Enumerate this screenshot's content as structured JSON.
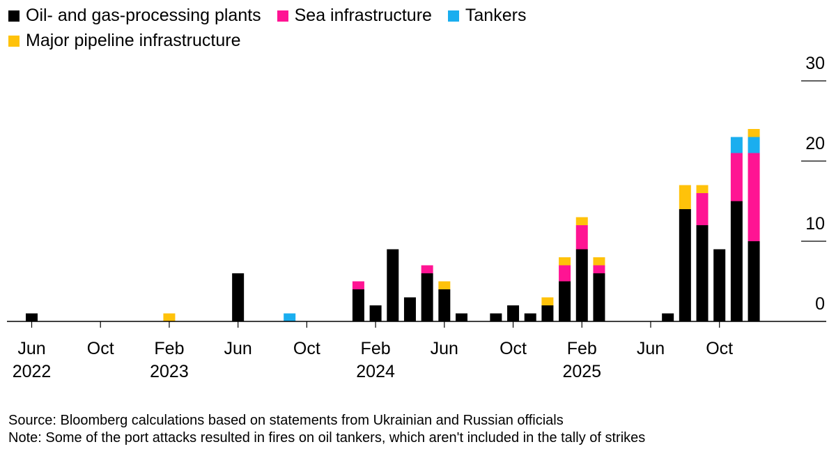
{
  "chart_data": {
    "type": "bar",
    "stacked": true,
    "title": "",
    "xlabel": "",
    "ylabel": "",
    "ylim": [
      0,
      30
    ],
    "y_ticks": [
      0,
      10,
      20,
      30
    ],
    "legend_position": "top-left",
    "categories": [
      "2022-06",
      "2022-07",
      "2022-08",
      "2022-09",
      "2022-10",
      "2022-11",
      "2022-12",
      "2023-01",
      "2023-02",
      "2023-03",
      "2023-04",
      "2023-05",
      "2023-06",
      "2023-07",
      "2023-08",
      "2023-09",
      "2023-10",
      "2023-11",
      "2023-12",
      "2024-01",
      "2024-02",
      "2024-03",
      "2024-04",
      "2024-05",
      "2024-06",
      "2024-07",
      "2024-08",
      "2024-09",
      "2024-10",
      "2024-11",
      "2024-12",
      "2025-01",
      "2025-02",
      "2025-03",
      "2025-04",
      "2025-05",
      "2025-06",
      "2025-07",
      "2025-08",
      "2025-09",
      "2025-10",
      "2025-11",
      "2025-12"
    ],
    "x_tick_labels": [
      {
        "index": 0,
        "month": "Jun",
        "year": "2022"
      },
      {
        "index": 4,
        "month": "Oct",
        "year": ""
      },
      {
        "index": 8,
        "month": "Feb",
        "year": "2023"
      },
      {
        "index": 12,
        "month": "Jun",
        "year": ""
      },
      {
        "index": 16,
        "month": "Oct",
        "year": ""
      },
      {
        "index": 20,
        "month": "Feb",
        "year": "2024"
      },
      {
        "index": 24,
        "month": "Jun",
        "year": ""
      },
      {
        "index": 28,
        "month": "Oct",
        "year": ""
      },
      {
        "index": 32,
        "month": "Feb",
        "year": "2025"
      },
      {
        "index": 36,
        "month": "Jun",
        "year": ""
      },
      {
        "index": 40,
        "month": "Oct",
        "year": ""
      }
    ],
    "series": [
      {
        "name": "Oil- and gas-processing plants",
        "color": "#000000",
        "values": [
          1,
          0,
          0,
          0,
          0,
          0,
          0,
          0,
          0,
          0,
          0,
          0,
          6,
          0,
          0,
          0,
          0,
          0,
          0,
          4,
          2,
          9,
          3,
          6,
          4,
          1,
          0,
          1,
          2,
          1,
          2,
          5,
          9,
          6,
          0,
          0,
          0,
          1,
          14,
          12,
          9,
          15,
          10
        ]
      },
      {
        "name": "Sea infrastructure",
        "color": "#ff1493",
        "values": [
          0,
          0,
          0,
          0,
          0,
          0,
          0,
          0,
          0,
          0,
          0,
          0,
          0,
          0,
          0,
          0,
          0,
          0,
          0,
          1,
          0,
          0,
          0,
          1,
          0,
          0,
          0,
          0,
          0,
          0,
          0,
          2,
          3,
          1,
          0,
          0,
          0,
          0,
          0,
          4,
          0,
          6,
          11
        ]
      },
      {
        "name": "Tankers",
        "color": "#1aaeef",
        "values": [
          0,
          0,
          0,
          0,
          0,
          0,
          0,
          0,
          0,
          0,
          0,
          0,
          0,
          0,
          0,
          1,
          0,
          0,
          0,
          0,
          0,
          0,
          0,
          0,
          0,
          0,
          0,
          0,
          0,
          0,
          0,
          0,
          0,
          0,
          0,
          0,
          0,
          0,
          0,
          0,
          0,
          2,
          2
        ]
      },
      {
        "name": "Major pipeline infrastructure",
        "color": "#ffc20a",
        "values": [
          0,
          0,
          0,
          0,
          0,
          0,
          0,
          0,
          1,
          0,
          0,
          0,
          0,
          0,
          0,
          0,
          0,
          0,
          0,
          0,
          0,
          0,
          0,
          0,
          1,
          0,
          0,
          0,
          0,
          0,
          1,
          1,
          1,
          1,
          0,
          0,
          0,
          0,
          3,
          1,
          0,
          0,
          1
        ]
      }
    ]
  },
  "footer": {
    "source": "Source: Bloomberg calculations based on statements from Ukrainian and Russian officials",
    "note": "Note: Some of the port attacks resulted in fires on oil tankers, which aren't included in the tally of strikes"
  }
}
